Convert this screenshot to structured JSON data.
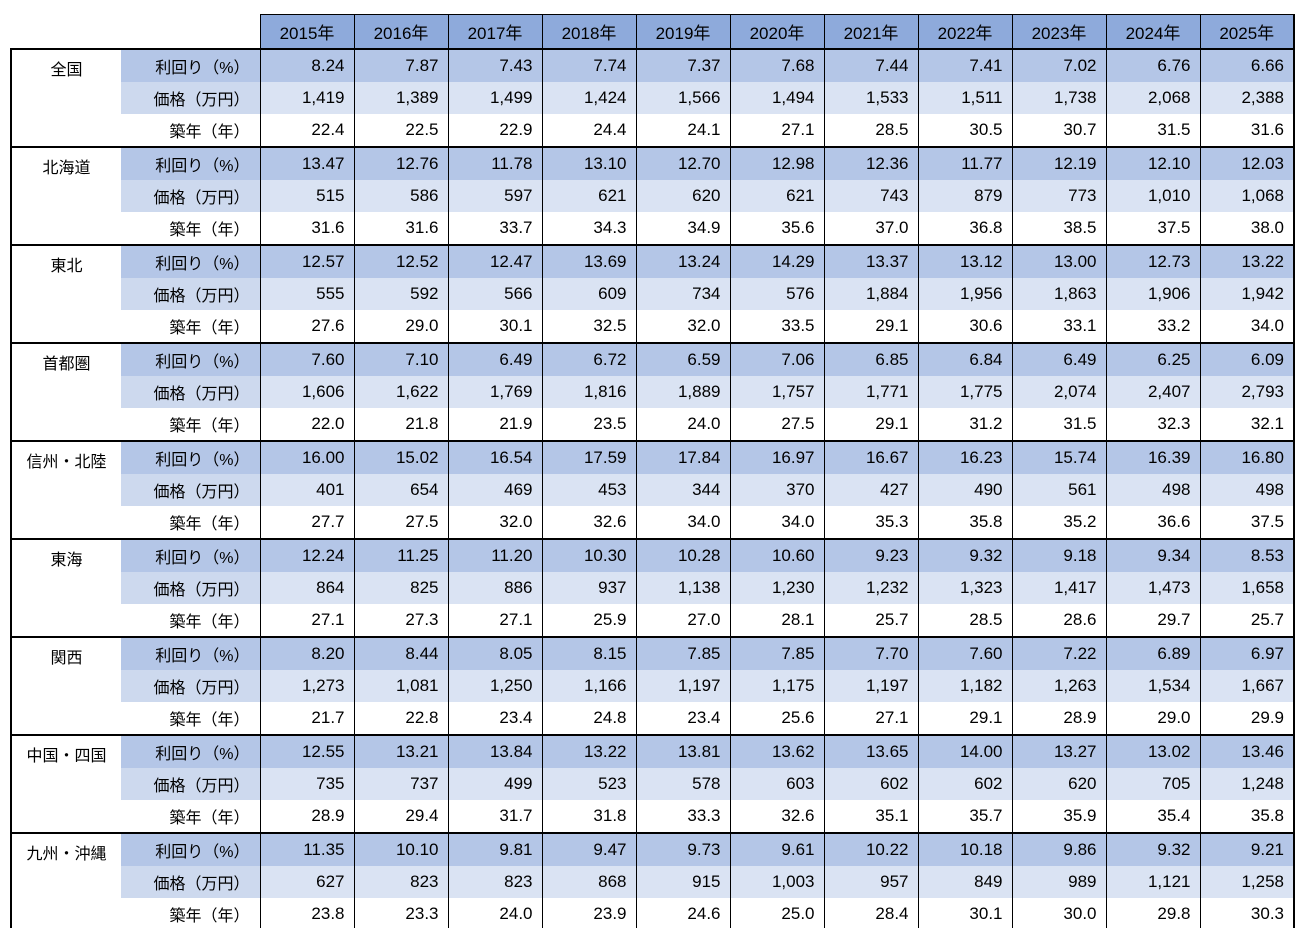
{
  "table": {
    "years": [
      "2015年",
      "2016年",
      "2017年",
      "2018年",
      "2019年",
      "2020年",
      "2021年",
      "2022年",
      "2023年",
      "2024年",
      "2025年"
    ],
    "metrics": {
      "yield": "利回り（%）",
      "price": "価格（万円）",
      "age": "築年（年）"
    },
    "regions": [
      {
        "name": "全国",
        "yield": [
          "8.24",
          "7.87",
          "7.43",
          "7.74",
          "7.37",
          "7.68",
          "7.44",
          "7.41",
          "7.02",
          "6.76",
          "6.66"
        ],
        "price": [
          "1,419",
          "1,389",
          "1,499",
          "1,424",
          "1,566",
          "1,494",
          "1,533",
          "1,511",
          "1,738",
          "2,068",
          "2,388"
        ],
        "age": [
          "22.4",
          "22.5",
          "22.9",
          "24.4",
          "24.1",
          "27.1",
          "28.5",
          "30.5",
          "30.7",
          "31.5",
          "31.6"
        ]
      },
      {
        "name": "北海道",
        "yield": [
          "13.47",
          "12.76",
          "11.78",
          "13.10",
          "12.70",
          "12.98",
          "12.36",
          "11.77",
          "12.19",
          "12.10",
          "12.03"
        ],
        "price": [
          "515",
          "586",
          "597",
          "621",
          "620",
          "621",
          "743",
          "879",
          "773",
          "1,010",
          "1,068"
        ],
        "age": [
          "31.6",
          "31.6",
          "33.7",
          "34.3",
          "34.9",
          "35.6",
          "37.0",
          "36.8",
          "38.5",
          "37.5",
          "38.0"
        ]
      },
      {
        "name": "東北",
        "yield": [
          "12.57",
          "12.52",
          "12.47",
          "13.69",
          "13.24",
          "14.29",
          "13.37",
          "13.12",
          "13.00",
          "12.73",
          "13.22"
        ],
        "price": [
          "555",
          "592",
          "566",
          "609",
          "734",
          "576",
          "1,884",
          "1,956",
          "1,863",
          "1,906",
          "1,942"
        ],
        "age": [
          "27.6",
          "29.0",
          "30.1",
          "32.5",
          "32.0",
          "33.5",
          "29.1",
          "30.6",
          "33.1",
          "33.2",
          "34.0"
        ]
      },
      {
        "name": "首都圏",
        "yield": [
          "7.60",
          "7.10",
          "6.49",
          "6.72",
          "6.59",
          "7.06",
          "6.85",
          "6.84",
          "6.49",
          "6.25",
          "6.09"
        ],
        "price": [
          "1,606",
          "1,622",
          "1,769",
          "1,816",
          "1,889",
          "1,757",
          "1,771",
          "1,775",
          "2,074",
          "2,407",
          "2,793"
        ],
        "age": [
          "22.0",
          "21.8",
          "21.9",
          "23.5",
          "24.0",
          "27.5",
          "29.1",
          "31.2",
          "31.5",
          "32.3",
          "32.1"
        ]
      },
      {
        "name": "信州・北陸",
        "yield": [
          "16.00",
          "15.02",
          "16.54",
          "17.59",
          "17.84",
          "16.97",
          "16.67",
          "16.23",
          "15.74",
          "16.39",
          "16.80"
        ],
        "price": [
          "401",
          "654",
          "469",
          "453",
          "344",
          "370",
          "427",
          "490",
          "561",
          "498",
          "498"
        ],
        "age": [
          "27.7",
          "27.5",
          "32.0",
          "32.6",
          "34.0",
          "34.0",
          "35.3",
          "35.8",
          "35.2",
          "36.6",
          "37.5"
        ]
      },
      {
        "name": "東海",
        "yield": [
          "12.24",
          "11.25",
          "11.20",
          "10.30",
          "10.28",
          "10.60",
          "9.23",
          "9.32",
          "9.18",
          "9.34",
          "8.53"
        ],
        "price": [
          "864",
          "825",
          "886",
          "937",
          "1,138",
          "1,230",
          "1,232",
          "1,323",
          "1,417",
          "1,473",
          "1,658"
        ],
        "age": [
          "27.1",
          "27.3",
          "27.1",
          "25.9",
          "27.0",
          "28.1",
          "25.7",
          "28.5",
          "28.6",
          "29.7",
          "25.7"
        ]
      },
      {
        "name": "関西",
        "yield": [
          "8.20",
          "8.44",
          "8.05",
          "8.15",
          "7.85",
          "7.85",
          "7.70",
          "7.60",
          "7.22",
          "6.89",
          "6.97"
        ],
        "price": [
          "1,273",
          "1,081",
          "1,250",
          "1,166",
          "1,197",
          "1,175",
          "1,197",
          "1,182",
          "1,263",
          "1,534",
          "1,667"
        ],
        "age": [
          "21.7",
          "22.8",
          "23.4",
          "24.8",
          "23.4",
          "25.6",
          "27.1",
          "29.1",
          "28.9",
          "29.0",
          "29.9"
        ]
      },
      {
        "name": "中国・四国",
        "yield": [
          "12.55",
          "13.21",
          "13.84",
          "13.22",
          "13.81",
          "13.62",
          "13.65",
          "14.00",
          "13.27",
          "13.02",
          "13.46"
        ],
        "price": [
          "735",
          "737",
          "499",
          "523",
          "578",
          "603",
          "602",
          "602",
          "620",
          "705",
          "1,248"
        ],
        "age": [
          "28.9",
          "29.4",
          "31.7",
          "31.8",
          "33.3",
          "32.6",
          "35.1",
          "35.7",
          "35.9",
          "35.4",
          "35.8"
        ]
      },
      {
        "name": "九州・沖縄",
        "yield": [
          "11.35",
          "10.10",
          "9.81",
          "9.47",
          "9.73",
          "9.61",
          "10.22",
          "10.18",
          "9.86",
          "9.32",
          "9.21"
        ],
        "price": [
          "627",
          "823",
          "823",
          "868",
          "915",
          "1,003",
          "957",
          "849",
          "989",
          "1,121",
          "1,258"
        ],
        "age": [
          "23.8",
          "23.3",
          "24.0",
          "23.9",
          "24.6",
          "25.0",
          "28.4",
          "30.1",
          "30.0",
          "29.8",
          "30.3"
        ]
      }
    ],
    "colors": {
      "header_bg": "#8eaadb",
      "yield_row_bg": "#b4c6e7",
      "price_label_bg": "#cdd9ee",
      "price_row_bg": "#dae3f3",
      "age_row_bg": "#ffffff",
      "border": "#000000"
    }
  }
}
